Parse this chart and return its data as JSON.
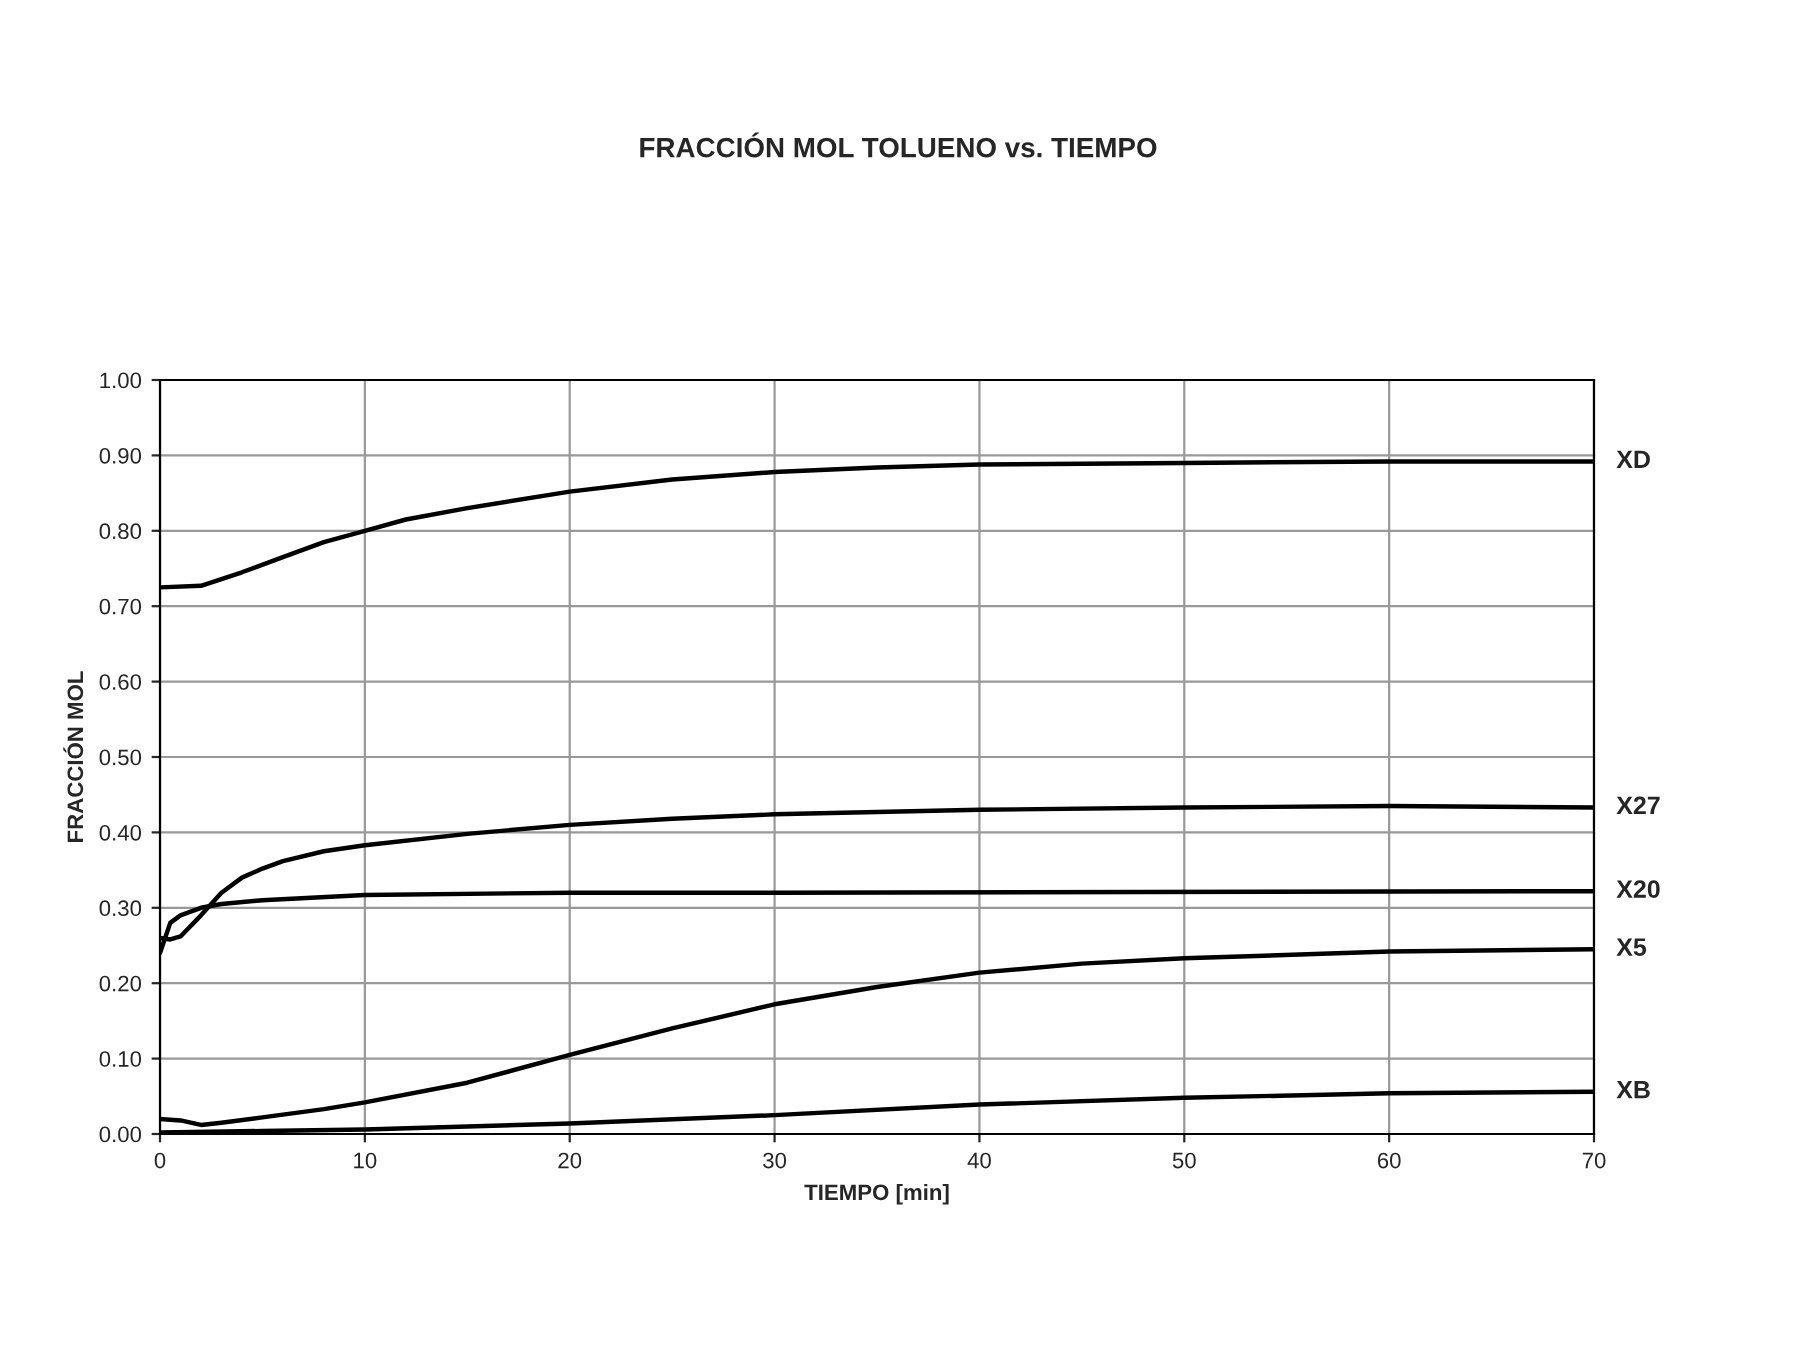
{
  "chart_data": {
    "type": "line",
    "title": "FRACCIÓN MOL TOLUENO vs. TIEMPO",
    "xlabel": "TIEMPO [min]",
    "ylabel": "FRACCIÓN MOL",
    "xlim": [
      0,
      70
    ],
    "xticks": [
      0,
      10,
      20,
      30,
      40,
      50,
      60,
      70
    ],
    "ylim": [
      0,
      1
    ],
    "yticks": [
      {
        "value": 0,
        "label": "0.00"
      },
      {
        "value": 0.1,
        "label": "0.10"
      },
      {
        "value": 0.2,
        "label": "0.20"
      },
      {
        "value": 0.3,
        "label": "0.30"
      },
      {
        "value": 0.4,
        "label": "0.40"
      },
      {
        "value": 0.5,
        "label": "0.50"
      },
      {
        "value": 0.6,
        "label": "0.60"
      },
      {
        "value": 0.7,
        "label": "0.70"
      },
      {
        "value": 0.8,
        "label": "0.80"
      },
      {
        "value": 0.9,
        "label": "0.90"
      },
      {
        "value": 1.0,
        "label": "1.00"
      }
    ],
    "grid": true,
    "marker": "none",
    "line_style": "solid",
    "series": [
      {
        "name": "XD",
        "color": "#000000",
        "x": [
          0,
          2,
          4,
          6,
          8,
          10,
          12,
          15,
          20,
          25,
          30,
          35,
          40,
          50,
          60,
          70
        ],
        "values": [
          0.725,
          0.727,
          0.745,
          0.765,
          0.785,
          0.8,
          0.815,
          0.83,
          0.852,
          0.868,
          0.878,
          0.884,
          0.888,
          0.89,
          0.892,
          0.892
        ]
      },
      {
        "name": "X27",
        "color": "#000000",
        "x": [
          0,
          0.5,
          1,
          2,
          3,
          4,
          5,
          6,
          8,
          10,
          15,
          20,
          25,
          30,
          40,
          50,
          60,
          70
        ],
        "values": [
          0.26,
          0.258,
          0.262,
          0.29,
          0.32,
          0.34,
          0.352,
          0.362,
          0.375,
          0.383,
          0.398,
          0.41,
          0.418,
          0.424,
          0.43,
          0.433,
          0.435,
          0.433
        ]
      },
      {
        "name": "X20",
        "color": "#000000",
        "x": [
          0,
          0.5,
          1,
          2,
          3,
          5,
          10,
          20,
          30,
          70
        ],
        "values": [
          0.24,
          0.28,
          0.29,
          0.3,
          0.305,
          0.31,
          0.317,
          0.32,
          0.32,
          0.322
        ]
      },
      {
        "name": "X5",
        "color": "#000000",
        "x": [
          0,
          1,
          2,
          3,
          5,
          8,
          10,
          15,
          20,
          25,
          30,
          35,
          40,
          45,
          50,
          60,
          70
        ],
        "values": [
          0.02,
          0.018,
          0.012,
          0.015,
          0.022,
          0.033,
          0.042,
          0.068,
          0.105,
          0.14,
          0.172,
          0.195,
          0.214,
          0.226,
          0.233,
          0.242,
          0.245
        ]
      },
      {
        "name": "XB",
        "color": "#000000",
        "x": [
          0,
          5,
          10,
          20,
          30,
          40,
          50,
          60,
          70
        ],
        "values": [
          0.002,
          0.004,
          0.006,
          0.014,
          0.025,
          0.039,
          0.048,
          0.054,
          0.056
        ]
      }
    ]
  }
}
